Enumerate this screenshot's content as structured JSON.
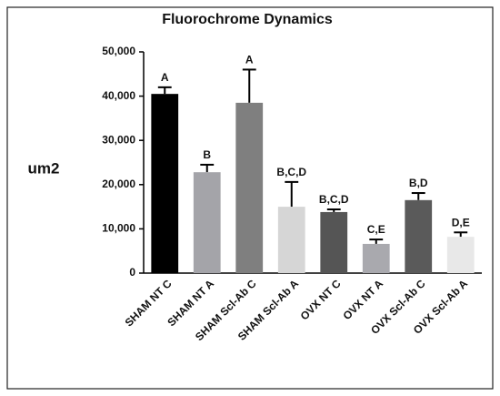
{
  "chart_data": {
    "type": "bar",
    "title": "Fluorochrome Dynamics",
    "y_label": "um2",
    "categories": [
      "SHAM NT C",
      "SHAM NT A",
      "SHAM Scl-Ab C",
      "SHAM Scl-Ab A",
      "OVX NT C",
      "OVX NT A",
      "OVX Scl-Ab C",
      "OVX Scl-Ab A"
    ],
    "values": [
      40500,
      22800,
      38500,
      15000,
      13800,
      6600,
      16500,
      8200
    ],
    "errors": [
      1500,
      1700,
      7500,
      5600,
      600,
      1000,
      1600,
      1000
    ],
    "annotations": [
      "A",
      "B",
      "A",
      "B,C,D",
      "B,C,D",
      "C,E",
      "B,D",
      "D,E"
    ],
    "colors": [
      "#000000",
      "#a4a4a9",
      "#7f7f7f",
      "#d6d6d6",
      "#555555",
      "#a9a9ae",
      "#5a5a5a",
      "#e8e8e8"
    ],
    "ylim": [
      0,
      50000
    ],
    "yticks": [
      0,
      {
        "value": 10000,
        "label": "10,000"
      },
      {
        "value": 20000,
        "label": "20,000"
      },
      {
        "value": 30000,
        "label": "30,000"
      },
      {
        "value": 40000,
        "label": "40,000"
      },
      {
        "value": 50000,
        "label": "50,000"
      }
    ],
    "grid": false
  }
}
